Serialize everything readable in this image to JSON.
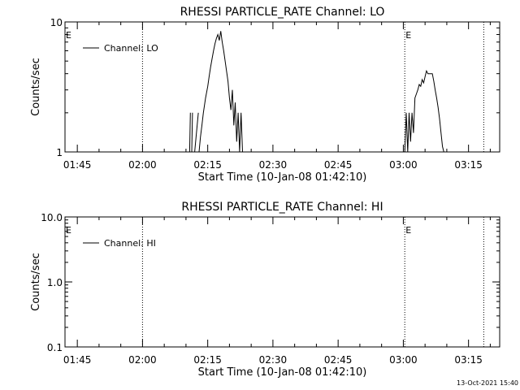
{
  "chart_data": [
    {
      "type": "line",
      "title": "RHESSI PARTICLE_RATE Channel: LO",
      "xlabel": "Start Time (10-Jan-08 01:42:10)",
      "ylabel": "Counts/sec",
      "yscale": "log",
      "ylim": [
        1,
        10
      ],
      "y_ticks": [
        "1",
        "10"
      ],
      "xlim": [
        "01:42:10",
        "03:22:10"
      ],
      "x_ticks": [
        "01:45",
        "02:00",
        "02:15",
        "02:30",
        "02:45",
        "03:00",
        "03:15"
      ],
      "grid": false,
      "legend_position": "top-left",
      "series": [
        {
          "name": "Channel: LO",
          "x": [
            "02:10:50",
            "02:11:00",
            "02:11:20",
            "02:11:30",
            "02:12:00",
            "02:12:50",
            "02:13:00",
            "02:13:20",
            "02:13:40",
            "02:14:00",
            "02:14:30",
            "02:15:00",
            "02:15:20",
            "02:15:40",
            "02:16:00",
            "02:16:20",
            "02:16:40",
            "02:17:00",
            "02:17:20",
            "02:17:40",
            "02:18:00",
            "02:18:20",
            "02:18:40",
            "02:19:00",
            "02:19:20",
            "02:19:40",
            "02:20:00",
            "02:20:20",
            "02:20:40",
            "02:21:00",
            "02:21:20",
            "02:21:40",
            "02:22:00",
            "02:22:20",
            "02:22:40",
            "02:23:00",
            "02:23:20"
          ],
          "y": [
            1,
            2,
            1,
            2,
            1,
            2,
            1,
            1.3,
            1.6,
            2,
            2.6,
            3.2,
            3.8,
            4.5,
            5.2,
            6,
            6.8,
            7.5,
            8,
            7.2,
            8.5,
            7,
            6,
            5,
            4.2,
            3.5,
            2.6,
            2.1,
            3,
            1.6,
            2.4,
            1.2,
            2,
            1,
            2,
            1,
            1
          ],
          "segment_breaks_after": [
            "02:11:00",
            "02:11:30",
            "02:12:50"
          ],
          "color": "#000000"
        },
        {
          "name": "",
          "x": [
            "03:00:20",
            "03:00:40",
            "03:01:00",
            "03:01:20",
            "03:01:40",
            "03:02:00",
            "03:02:20",
            "03:02:40",
            "03:03:00",
            "03:03:20",
            "03:03:40",
            "03:04:00",
            "03:04:20",
            "03:04:40",
            "03:05:00",
            "03:05:20",
            "03:05:40",
            "03:06:00",
            "03:06:20",
            "03:06:40",
            "03:07:00",
            "03:07:20",
            "03:07:40",
            "03:08:00",
            "03:08:20",
            "03:08:40",
            "03:09:00",
            "03:09:20"
          ],
          "y": [
            1,
            2,
            1,
            2,
            1.2,
            2,
            1.4,
            2.6,
            2.8,
            3,
            3.3,
            3.2,
            3.6,
            3.4,
            3.8,
            4.2,
            4,
            4,
            4,
            4,
            3.5,
            3,
            2.6,
            2.2,
            1.8,
            1.4,
            1.1,
            1
          ],
          "color": "#000000"
        }
      ],
      "event_markers": [
        {
          "label": "E",
          "time": "01:42:10"
        },
        {
          "label": "E",
          "time": "03:00:20"
        }
      ],
      "dotted_vertical_lines": [
        "02:00:00",
        "03:00:20",
        "03:18:30"
      ]
    },
    {
      "type": "line",
      "title": "RHESSI PARTICLE_RATE Channel: HI",
      "xlabel": "Start Time (10-Jan-08 01:42:10)",
      "ylabel": "Counts/sec",
      "yscale": "log",
      "ylim": [
        0.1,
        10.0
      ],
      "y_ticks": [
        "0.1",
        "1.0",
        "10.0"
      ],
      "xlim": [
        "01:42:10",
        "03:22:10"
      ],
      "x_ticks": [
        "01:45",
        "02:00",
        "02:15",
        "02:30",
        "02:45",
        "03:00",
        "03:15"
      ],
      "grid": false,
      "legend_position": "top-left",
      "series": [
        {
          "name": "Channel: HI",
          "x": [],
          "y": [],
          "color": "#000000"
        }
      ],
      "event_markers": [
        {
          "label": "E",
          "time": "01:42:10"
        },
        {
          "label": "E",
          "time": "03:00:20"
        }
      ],
      "dotted_vertical_lines": [
        "02:00:00",
        "03:00:20",
        "03:18:30"
      ]
    }
  ],
  "footer": {
    "timestamp": "13-Oct-2021 15:40"
  }
}
